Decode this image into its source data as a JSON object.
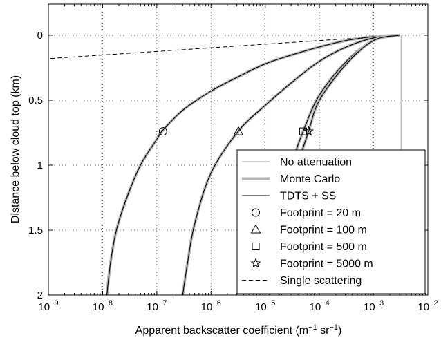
{
  "chart_data": {
    "type": "line",
    "xlabel": {
      "main": "Apparent backscatter coefficient (m",
      "exp1": "−1",
      "mid": " sr",
      "exp2": "−1",
      "end": ")"
    },
    "ylabel": "Distance below cloud top (km)",
    "xscale": "log",
    "x_lim": [
      1e-09,
      0.01
    ],
    "y_lim": [
      0,
      2
    ],
    "y_inverted": true,
    "grid": true,
    "legend_position": "bottom-right",
    "x_ticks": [
      {
        "value": 1e-09,
        "base": "10",
        "exp": "−9"
      },
      {
        "value": 1e-08,
        "base": "10",
        "exp": "−8"
      },
      {
        "value": 1e-07,
        "base": "10",
        "exp": "−7"
      },
      {
        "value": 1e-06,
        "base": "10",
        "exp": "−6"
      },
      {
        "value": 1e-05,
        "base": "10",
        "exp": "−5"
      },
      {
        "value": 0.0001,
        "base": "10",
        "exp": "−4"
      },
      {
        "value": 0.001,
        "base": "10",
        "exp": "−3"
      },
      {
        "value": 0.01,
        "base": "10",
        "exp": "−2"
      }
    ],
    "y_ticks": [
      {
        "value": 0,
        "label": "0"
      },
      {
        "value": 0.5,
        "label": "0.5"
      },
      {
        "value": 1,
        "label": "1"
      },
      {
        "value": 1.5,
        "label": "1.5"
      },
      {
        "value": 2,
        "label": "2"
      }
    ],
    "legend": [
      {
        "label": "No attenuation",
        "style": "thin-gray"
      },
      {
        "label": "Monte Carlo",
        "style": "thick-gray"
      },
      {
        "label": "TDTS + SS",
        "style": "black"
      },
      {
        "label": "Footprint = 20 m",
        "style": "circle"
      },
      {
        "label": "Footprint = 100 m",
        "style": "triangle"
      },
      {
        "label": "Footprint = 500 m",
        "style": "square"
      },
      {
        "label": "Footprint = 5000 m",
        "style": "star"
      },
      {
        "label": "Single scattering",
        "style": "dashed"
      }
    ],
    "colors": {
      "monte_carlo": "#b4b4b4",
      "no_attenuation": "#b4b4b4",
      "tdts": "#000000",
      "single_scattering": "#000000"
    },
    "series": [
      {
        "legend": "No attenuation",
        "points": [
          [
            0.0032,
            0
          ],
          [
            0.0032,
            2
          ]
        ]
      },
      {
        "legend": "Single scattering",
        "points": [
          [
            0.003,
            0
          ],
          [
            1e-09,
            0.18
          ]
        ]
      },
      {
        "legend": "Monte Carlo / TDTS + SS",
        "footprint": "20 m",
        "points": [
          [
            0.003,
            0
          ],
          [
            0.001,
            0.01
          ],
          [
            0.000316,
            0.04
          ],
          [
            0.0001,
            0.09
          ],
          [
            3.16e-05,
            0.15
          ],
          [
            1e-05,
            0.22
          ],
          [
            3.16e-06,
            0.32
          ],
          [
            1e-06,
            0.43
          ],
          [
            3.16e-07,
            0.57
          ],
          [
            1.3e-07,
            0.73
          ],
          [
            1e-07,
            0.8
          ],
          [
            5e-08,
            1.0
          ],
          [
            2.8e-08,
            1.25
          ],
          [
            1.8e-08,
            1.5
          ],
          [
            1.4e-08,
            1.75
          ],
          [
            1.2e-08,
            2.0
          ]
        ]
      },
      {
        "legend": "Monte Carlo / TDTS + SS",
        "footprint": "100 m",
        "points": [
          [
            0.003,
            0
          ],
          [
            0.001,
            0.02
          ],
          [
            0.000316,
            0.09
          ],
          [
            0.0001,
            0.2
          ],
          [
            3.16e-05,
            0.36
          ],
          [
            1e-05,
            0.54
          ],
          [
            3.16e-06,
            0.74
          ],
          [
            1e-06,
            1.06
          ],
          [
            5e-07,
            1.45
          ],
          [
            3.7e-07,
            1.75
          ],
          [
            3e-07,
            2.0
          ]
        ]
      },
      {
        "legend": "Monte Carlo / TDTS + SS",
        "footprint": "500 m",
        "points": [
          [
            0.003,
            0
          ],
          [
            0.001,
            0.04
          ],
          [
            0.000316,
            0.2
          ],
          [
            0.0001,
            0.46
          ],
          [
            5e-05,
            0.74
          ],
          [
            3.16e-05,
            0.98
          ],
          [
            2e-05,
            1.3
          ],
          [
            1.5e-05,
            1.6
          ],
          [
            1.2e-05,
            2.0
          ]
        ]
      },
      {
        "legend": "Monte Carlo / TDTS + SS",
        "footprint": "5000 m",
        "points": [
          [
            0.003,
            0
          ],
          [
            0.001,
            0.04
          ],
          [
            0.000316,
            0.22
          ],
          [
            0.0001,
            0.5
          ],
          [
            6.3e-05,
            0.74
          ],
          [
            4e-05,
            1.0
          ],
          [
            2.8e-05,
            1.3
          ],
          [
            2.2e-05,
            1.6
          ],
          [
            1.8e-05,
            2.0
          ]
        ]
      }
    ],
    "markers": [
      {
        "footprint": "20 m",
        "shape": "circle",
        "x": 1.3e-07,
        "y": 0.74
      },
      {
        "footprint": "100 m",
        "shape": "triangle",
        "x": 3.2e-06,
        "y": 0.74
      },
      {
        "footprint": "500 m",
        "shape": "square",
        "x": 5e-05,
        "y": 0.74
      },
      {
        "footprint": "5000 m",
        "shape": "star",
        "x": 6.3e-05,
        "y": 0.74
      }
    ]
  }
}
